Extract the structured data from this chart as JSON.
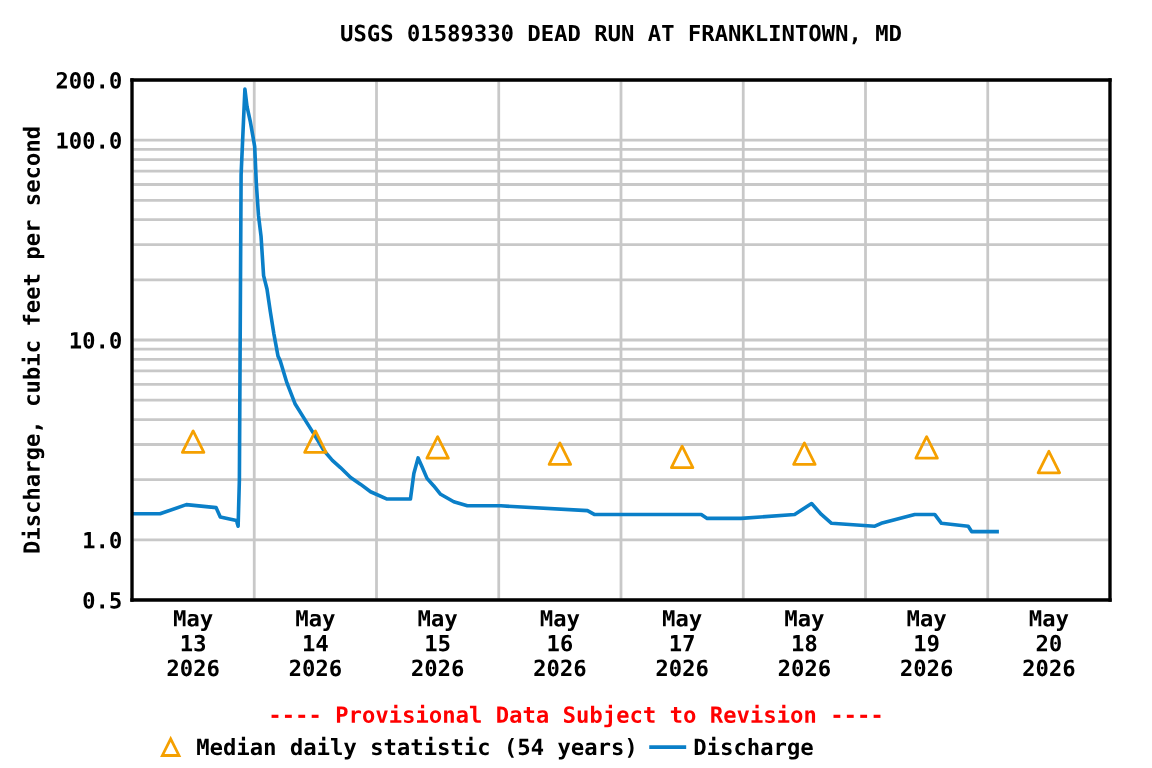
{
  "chart_data": {
    "type": "line",
    "title": "USGS 01589330 DEAD RUN AT FRANKLINTOWN, MD",
    "ylabel": "Discharge, cubic feet per second",
    "annotations": [
      "---- Provisional Data Subject to Revision ----"
    ],
    "log": true,
    "grid": true,
    "legend": "bottom",
    "xlim": [
      "2026-05-13T00:00",
      "2026-05-21T00:00"
    ],
    "xticks": [
      {
        "value": "2026-05-13T00:00",
        "label": null
      },
      {
        "value": "2026-05-14T00:00",
        "label": null
      },
      {
        "value": "2026-05-15T00:00",
        "label": null
      },
      {
        "value": "2026-05-16T00:00",
        "label": null
      },
      {
        "value": "2026-05-17T00:00",
        "label": null
      },
      {
        "value": "2026-05-18T00:00",
        "label": null
      },
      {
        "value": "2026-05-19T00:00",
        "label": null
      },
      {
        "value": "2026-05-20T00:00",
        "label": null
      },
      {
        "value": "2026-05-21T00:00",
        "label": null
      },
      {
        "value": "2026-05-13T12:00",
        "label": "May\n13\n2026"
      },
      {
        "value": "2026-05-14T12:00",
        "label": "May\n14\n2026"
      },
      {
        "value": "2026-05-15T12:00",
        "label": "May\n15\n2026"
      },
      {
        "value": "2026-05-16T12:00",
        "label": "May\n16\n2026"
      },
      {
        "value": "2026-05-17T12:00",
        "label": "May\n17\n2026"
      },
      {
        "value": "2026-05-18T12:00",
        "label": "May\n18\n2026"
      },
      {
        "value": "2026-05-19T12:00",
        "label": "May\n19\n2026"
      },
      {
        "value": "2026-05-20T12:00",
        "label": "May\n20\n2026"
      }
    ],
    "ylim": [
      0.5,
      200
    ],
    "yticks": [
      {
        "value": 0.5,
        "label": "0.5"
      },
      {
        "value": 1,
        "label": "1.0"
      },
      {
        "value": 2,
        "label": null
      },
      {
        "value": 3,
        "label": null
      },
      {
        "value": 4,
        "label": null
      },
      {
        "value": 5,
        "label": null
      },
      {
        "value": 6,
        "label": null
      },
      {
        "value": 7,
        "label": null
      },
      {
        "value": 8,
        "label": null
      },
      {
        "value": 9,
        "label": null
      },
      {
        "value": 10,
        "label": "10.0"
      },
      {
        "value": 20,
        "label": null
      },
      {
        "value": 30,
        "label": null
      },
      {
        "value": 40,
        "label": null
      },
      {
        "value": 50,
        "label": null
      },
      {
        "value": 60,
        "label": null
      },
      {
        "value": 70,
        "label": null
      },
      {
        "value": 80,
        "label": null
      },
      {
        "value": 90,
        "label": null
      },
      {
        "value": 100,
        "label": "100.0"
      },
      {
        "value": 200,
        "label": "200.0"
      }
    ],
    "series": [
      {
        "name": "Median daily statistic (54 years)",
        "type": "scatter",
        "marker": "triangle",
        "color": "#f5a000",
        "x": [
          "2026-05-13T12:00",
          "2026-05-14T12:00",
          "2026-05-15T12:00",
          "2026-05-16T12:00",
          "2026-05-17T12:00",
          "2026-05-18T12:00",
          "2026-05-19T12:00",
          "2026-05-20T12:00"
        ],
        "values": [
          3.1,
          3.1,
          2.9,
          2.7,
          2.6,
          2.7,
          2.9,
          2.45
        ]
      },
      {
        "name": "Discharge",
        "color": "#0a7fc8",
        "x": [
          "2026-05-13T00:00",
          "2026-05-13T05:30",
          "2026-05-13T10:40",
          "2026-05-13T16:30",
          "2026-05-13T17:20",
          "2026-05-13T20:30",
          "2026-05-13T20:50",
          "2026-05-13T21:05",
          "2026-05-13T21:25",
          "2026-05-13T22:10",
          "2026-05-13T22:35",
          "2026-05-13T23:15",
          "2026-05-14T00:05",
          "2026-05-14T00:25",
          "2026-05-14T00:50",
          "2026-05-14T01:20",
          "2026-05-14T01:50",
          "2026-05-14T02:30",
          "2026-05-14T03:10",
          "2026-05-14T03:50",
          "2026-05-14T04:40",
          "2026-05-14T05:05",
          "2026-05-14T06:25",
          "2026-05-14T08:00",
          "2026-05-14T09:40",
          "2026-05-14T11:40",
          "2026-05-14T13:40",
          "2026-05-14T15:20",
          "2026-05-14T16:55",
          "2026-05-14T18:55",
          "2026-05-14T20:50",
          "2026-05-14T22:50",
          "2026-05-15T02:05",
          "2026-05-15T06:40",
          "2026-05-15T07:20",
          "2026-05-15T08:10",
          "2026-05-15T08:55",
          "2026-05-15T09:55",
          "2026-05-15T11:15",
          "2026-05-15T12:35",
          "2026-05-15T15:10",
          "2026-05-15T17:50",
          "2026-05-16T00:25",
          "2026-05-16T17:25",
          "2026-05-16T18:45",
          "2026-05-17T15:45",
          "2026-05-17T16:55",
          "2026-05-17T23:35",
          "2026-05-18T10:05",
          "2026-05-18T13:25",
          "2026-05-18T15:20",
          "2026-05-18T17:20",
          "2026-05-19T01:50",
          "2026-05-19T03:05",
          "2026-05-19T09:40",
          "2026-05-19T13:35",
          "2026-05-19T14:55",
          "2026-05-19T20:10",
          "2026-05-19T20:50",
          "2026-05-20T01:50"
        ],
        "values": [
          1.35,
          1.35,
          1.5,
          1.45,
          1.3,
          1.25,
          1.17,
          2.0,
          67,
          180,
          147,
          123,
          93,
          60,
          42,
          33,
          21,
          18,
          13.8,
          10.8,
          8.3,
          7.9,
          6.1,
          4.8,
          4.1,
          3.4,
          2.8,
          2.5,
          2.3,
          2.05,
          1.9,
          1.74,
          1.6,
          1.6,
          2.15,
          2.57,
          2.33,
          2.03,
          1.86,
          1.69,
          1.55,
          1.48,
          1.48,
          1.4,
          1.34,
          1.34,
          1.28,
          1.28,
          1.34,
          1.52,
          1.34,
          1.21,
          1.17,
          1.21,
          1.34,
          1.34,
          1.21,
          1.17,
          1.1,
          1.1
        ]
      }
    ]
  }
}
